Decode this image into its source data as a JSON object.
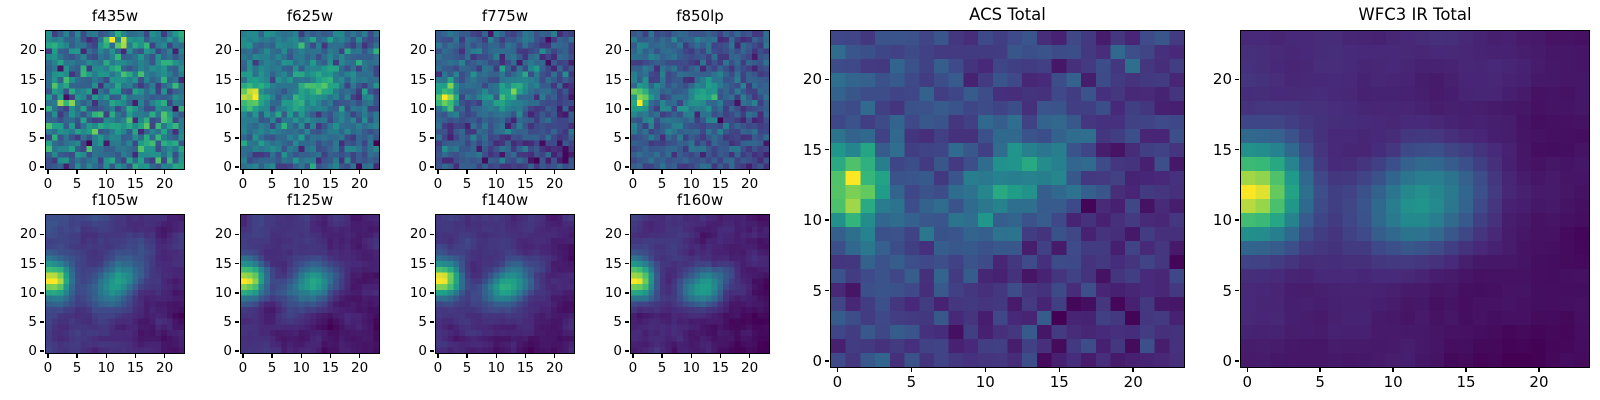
{
  "figure": {
    "background": "#ffffff",
    "axis_color": "#000000",
    "text_color": "#000000"
  },
  "chart_data": {
    "type": "heatmap",
    "colormap": "viridis",
    "grid_size": 24,
    "axis_range": [
      -0.5,
      23.5
    ],
    "xticks": [
      0,
      5,
      10,
      15,
      20
    ],
    "yticks": [
      0,
      5,
      10,
      15,
      20
    ],
    "legend": "none",
    "grid": false,
    "colormap_stops": [
      [
        0.0,
        68,
        1,
        84
      ],
      [
        0.125,
        72,
        40,
        120
      ],
      [
        0.25,
        62,
        74,
        137
      ],
      [
        0.375,
        49,
        104,
        142
      ],
      [
        0.5,
        38,
        130,
        142
      ],
      [
        0.625,
        31,
        158,
        137
      ],
      [
        0.75,
        53,
        183,
        121
      ],
      [
        0.875,
        109,
        205,
        89
      ],
      [
        1.0,
        253,
        231,
        37
      ]
    ],
    "panels": [
      {
        "id": "f435w",
        "title": "f435w",
        "size": "small",
        "model": {
          "seed": 11,
          "noise": 1.0,
          "smooth": 0,
          "grad": [
            0,
            0,
            0
          ],
          "sources": []
        }
      },
      {
        "id": "f625w",
        "title": "f625w",
        "size": "small",
        "model": {
          "seed": 22,
          "noise": 0.5,
          "smooth": 0,
          "grad": [
            -0.35,
            0.3,
            0.25
          ],
          "sources": [
            {
              "x": 1.2,
              "y": 12.3,
              "sx": 1.5,
              "sy": 1.8,
              "theta": 0,
              "amp": 2.7
            },
            {
              "x": 12.0,
              "y": 13.0,
              "sx": 3.8,
              "sy": 1.7,
              "theta": 38,
              "amp": 1.5
            }
          ]
        }
      },
      {
        "id": "f775w",
        "title": "f775w",
        "size": "small",
        "model": {
          "seed": 33,
          "noise": 0.42,
          "smooth": 0,
          "grad": [
            -0.3,
            0.25,
            0.2
          ],
          "sources": [
            {
              "x": 1.2,
              "y": 12.2,
              "sx": 1.5,
              "sy": 1.8,
              "theta": 0,
              "amp": 2.8
            },
            {
              "x": 12.2,
              "y": 12.6,
              "sx": 3.6,
              "sy": 1.8,
              "theta": 38,
              "amp": 1.6
            }
          ]
        }
      },
      {
        "id": "f850lp",
        "title": "f850lp",
        "size": "small",
        "model": {
          "seed": 44,
          "noise": 0.5,
          "smooth": 0,
          "grad": [
            -0.3,
            0.2,
            0.2
          ],
          "sources": [
            {
              "x": 1.0,
              "y": 12.0,
              "sx": 1.4,
              "sy": 1.9,
              "theta": 0,
              "amp": 2.9
            },
            {
              "x": 12.0,
              "y": 12.2,
              "sx": 3.4,
              "sy": 1.8,
              "theta": 36,
              "amp": 1.5
            }
          ]
        }
      },
      {
        "id": "f105w",
        "title": "f105w",
        "size": "small",
        "model": {
          "seed": 55,
          "noise": 0.26,
          "smooth": 1,
          "grad": [
            -0.3,
            0.2,
            0.15
          ],
          "sources": [
            {
              "x": 1.0,
              "y": 12.2,
              "sx": 1.6,
              "sy": 2.0,
              "theta": 0,
              "amp": 3.0
            },
            {
              "x": 11.8,
              "y": 11.8,
              "sx": 3.2,
              "sy": 2.0,
              "theta": 35,
              "amp": 1.7
            }
          ]
        }
      },
      {
        "id": "f125w",
        "title": "f125w",
        "size": "small",
        "model": {
          "seed": 66,
          "noise": 0.24,
          "smooth": 1,
          "grad": [
            -0.3,
            0.2,
            0.15
          ],
          "sources": [
            {
              "x": 1.0,
              "y": 12.3,
              "sx": 1.6,
              "sy": 2.0,
              "theta": 0,
              "amp": 3.1
            },
            {
              "x": 12.0,
              "y": 11.5,
              "sx": 3.0,
              "sy": 2.0,
              "theta": 33,
              "amp": 1.8
            }
          ]
        }
      },
      {
        "id": "f140w",
        "title": "f140w",
        "size": "small",
        "model": {
          "seed": 77,
          "noise": 0.26,
          "smooth": 1,
          "grad": [
            -0.3,
            0.2,
            0.15
          ],
          "sources": [
            {
              "x": 1.0,
              "y": 12.2,
              "sx": 1.6,
              "sy": 2.0,
              "theta": 0,
              "amp": 3.1
            },
            {
              "x": 12.2,
              "y": 11.2,
              "sx": 3.0,
              "sy": 2.0,
              "theta": 32,
              "amp": 1.9
            }
          ]
        }
      },
      {
        "id": "f160w",
        "title": "f160w",
        "size": "small",
        "model": {
          "seed": 88,
          "noise": 0.26,
          "smooth": 1,
          "grad": [
            -0.3,
            0.2,
            0.15
          ],
          "sources": [
            {
              "x": 1.0,
              "y": 12.2,
              "sx": 1.6,
              "sy": 2.1,
              "theta": 0,
              "amp": 3.2
            },
            {
              "x": 12.4,
              "y": 11.0,
              "sx": 2.8,
              "sy": 2.0,
              "theta": 30,
              "amp": 2.0
            }
          ]
        }
      },
      {
        "id": "acs-total",
        "title": "ACS Total",
        "size": "large",
        "model": {
          "seed": 99,
          "noise": 0.3,
          "smooth": 0,
          "grad": [
            -0.45,
            0.3,
            0.35
          ],
          "sources": [
            {
              "x": 1.0,
              "y": 12.2,
              "sx": 1.7,
              "sy": 2.2,
              "theta": 0,
              "amp": 3.0
            },
            {
              "x": 12.3,
              "y": 12.8,
              "sx": 3.8,
              "sy": 2.0,
              "theta": 38,
              "amp": 1.6
            }
          ]
        }
      },
      {
        "id": "wfc3-ir-total",
        "title": "WFC3 IR Total",
        "size": "large",
        "model": {
          "seed": 111,
          "noise": 0.12,
          "smooth": 1,
          "grad": [
            -0.25,
            0.15,
            0.1
          ],
          "sources": [
            {
              "x": 1.0,
              "y": 12.0,
              "sx": 1.8,
              "sy": 2.4,
              "theta": 0,
              "amp": 3.2
            },
            {
              "x": 12.0,
              "y": 11.3,
              "sx": 3.0,
              "sy": 2.2,
              "theta": 30,
              "amp": 1.8
            }
          ]
        }
      }
    ]
  }
}
